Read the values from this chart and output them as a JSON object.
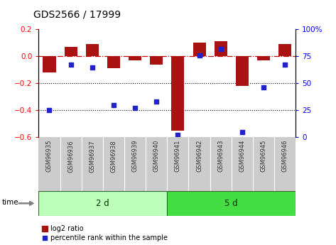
{
  "title": "GDS2566 / 17999",
  "samples": [
    "GSM96935",
    "GSM96936",
    "GSM96937",
    "GSM96938",
    "GSM96939",
    "GSM96940",
    "GSM96941",
    "GSM96942",
    "GSM96943",
    "GSM96944",
    "GSM96945",
    "GSM96946"
  ],
  "log2_ratio": [
    -0.12,
    0.07,
    0.09,
    -0.09,
    -0.03,
    -0.06,
    -0.55,
    0.1,
    0.11,
    -0.22,
    -0.03,
    0.09
  ],
  "percentile_rank": [
    25,
    67,
    65,
    30,
    27,
    33,
    2,
    76,
    82,
    5,
    46,
    67
  ],
  "groups": [
    {
      "label": "2 d",
      "samples": [
        0,
        1,
        2,
        3,
        4,
        5
      ],
      "color": "#bbffbb"
    },
    {
      "label": "5 d",
      "samples": [
        6,
        7,
        8,
        9,
        10,
        11
      ],
      "color": "#44dd44"
    }
  ],
  "bar_color": "#aa1111",
  "dot_color": "#2222cc",
  "ylim_left": [
    -0.6,
    0.2
  ],
  "ylim_right": [
    0,
    100
  ],
  "yticks_left": [
    0.2,
    0.0,
    -0.2,
    -0.4,
    -0.6
  ],
  "yticks_right": [
    100,
    75,
    50,
    25,
    0
  ],
  "hline_zero_color": "#cc0000",
  "hline_dotted_color": "#000000",
  "background_plot": "#ffffff",
  "background_sample": "#cccccc",
  "title_fontsize": 10,
  "tick_fontsize": 7.5,
  "sample_fontsize": 6,
  "group_fontsize": 8.5,
  "legend_fontsize": 7
}
